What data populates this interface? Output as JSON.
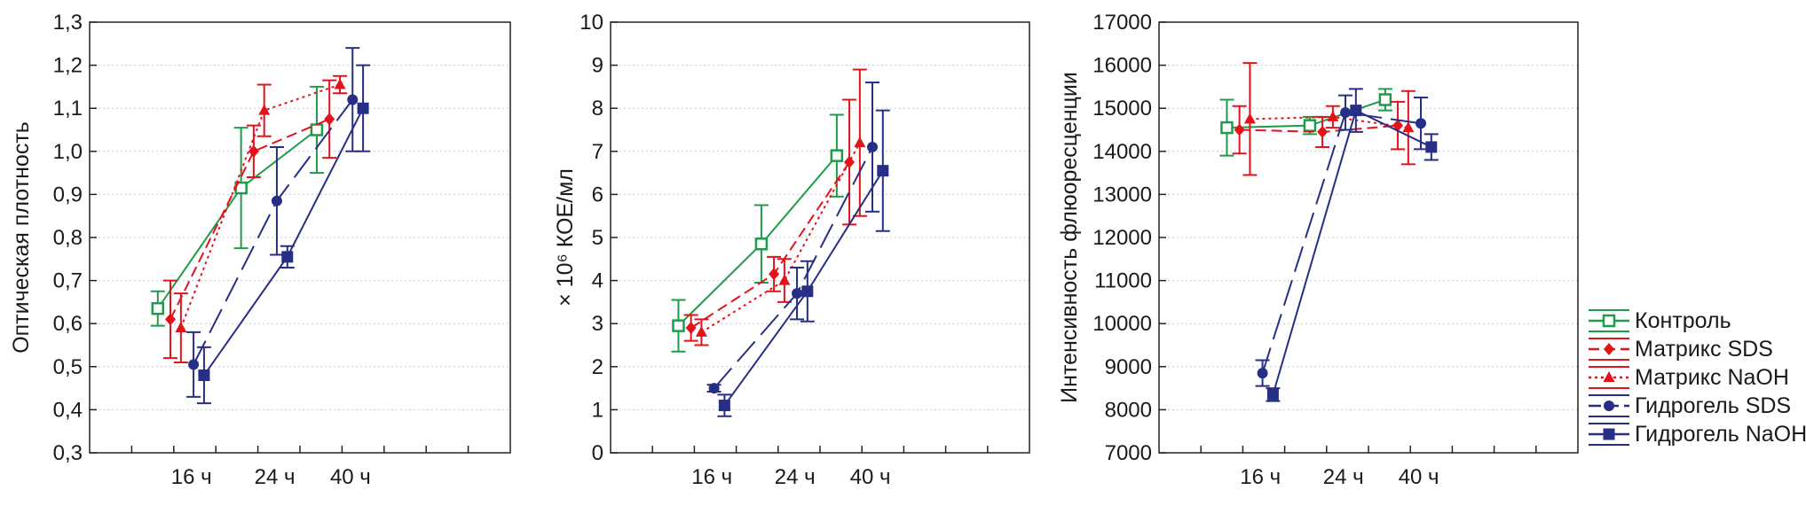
{
  "legend": [
    {
      "label": "Контроль",
      "color": "#1e9b4b",
      "dash": "solid",
      "marker": "square-open"
    },
    {
      "label": "Матрикс SDS",
      "color": "#e3131b",
      "dash": "dashed",
      "marker": "diamond"
    },
    {
      "label": "Матрикс NaOH",
      "color": "#e3131b",
      "dash": "dotted",
      "marker": "triangle"
    },
    {
      "label": "Гидрогель SDS",
      "color": "#262e85",
      "dash": "longdash",
      "marker": "circle"
    },
    {
      "label": "Гидрогель NaOH",
      "color": "#262e85",
      "dash": "solid",
      "marker": "square"
    }
  ],
  "chart_data": [
    {
      "type": "line",
      "title": "",
      "xlabel": "",
      "ylabel": "Оптическая плотность",
      "categories": [
        "16 ч",
        "24 ч",
        "40 ч"
      ],
      "ylim": [
        0.3,
        1.3
      ],
      "yticks": [
        "0,3",
        "0,4",
        "0,5",
        "0,6",
        "0,7",
        "0,8",
        "0,9",
        "1,0",
        "1,1",
        "1,2",
        "1,3"
      ],
      "grid": true,
      "series": [
        {
          "name": "Контроль",
          "values": [
            0.635,
            0.915,
            1.05
          ],
          "errors": [
            0.04,
            0.14,
            0.1
          ]
        },
        {
          "name": "Матрикс SDS",
          "values": [
            0.61,
            1.0,
            1.075
          ],
          "errors": [
            0.09,
            0.06,
            0.09
          ]
        },
        {
          "name": "Матрикс NaOH",
          "values": [
            0.59,
            1.095,
            1.155
          ],
          "errors": [
            0.08,
            0.06,
            0.02
          ]
        },
        {
          "name": "Гидрогель SDS",
          "values": [
            0.505,
            0.885,
            1.12
          ],
          "errors": [
            0.075,
            0.125,
            0.12
          ]
        },
        {
          "name": "Гидрогель NaOH",
          "values": [
            0.48,
            0.755,
            1.1
          ],
          "errors": [
            0.065,
            0.025,
            0.1
          ]
        }
      ]
    },
    {
      "type": "line",
      "title": "",
      "xlabel": "",
      "ylabel": "× 10⁶ КОЕ/мл",
      "categories": [
        "16 ч",
        "24 ч",
        "40 ч"
      ],
      "ylim": [
        0,
        10
      ],
      "yticks": [
        "0",
        "1",
        "2",
        "3",
        "4",
        "5",
        "6",
        "7",
        "8",
        "9",
        "10"
      ],
      "grid": true,
      "series": [
        {
          "name": "Контроль",
          "values": [
            2.95,
            4.85,
            6.9
          ],
          "errors": [
            0.6,
            0.9,
            0.95
          ]
        },
        {
          "name": "Матрикс SDS",
          "values": [
            2.9,
            4.15,
            6.75
          ],
          "errors": [
            0.3,
            0.4,
            1.45
          ]
        },
        {
          "name": "Матрикс NaOH",
          "values": [
            2.8,
            4.0,
            7.2
          ],
          "errors": [
            0.3,
            0.5,
            1.7
          ]
        },
        {
          "name": "Гидрогель SDS",
          "values": [
            1.5,
            3.7,
            7.1
          ],
          "errors": [
            0.08,
            0.6,
            1.5
          ]
        },
        {
          "name": "Гидрогель NaOH",
          "values": [
            1.1,
            3.75,
            6.55
          ],
          "errors": [
            0.25,
            0.7,
            1.4
          ]
        }
      ]
    },
    {
      "type": "line",
      "title": "",
      "xlabel": "",
      "ylabel": "Интенсивность флюоресценции",
      "categories": [
        "16 ч",
        "24 ч",
        "40 ч"
      ],
      "ylim": [
        7000,
        17000
      ],
      "yticks": [
        "7000",
        "8000",
        "9000",
        "10000",
        "11000",
        "12000",
        "13000",
        "14000",
        "15000",
        "16000",
        "17000"
      ],
      "grid": true,
      "series": [
        {
          "name": "Контроль",
          "values": [
            14550,
            14600,
            15200
          ],
          "errors": [
            650,
            200,
            250
          ]
        },
        {
          "name": "Матрикс SDS",
          "values": [
            14500,
            14450,
            14600
          ],
          "errors": [
            550,
            350,
            550
          ]
        },
        {
          "name": "Матрикс NaOH",
          "values": [
            14750,
            14800,
            14550
          ],
          "errors": [
            1300,
            250,
            850
          ]
        },
        {
          "name": "Гидрогель SDS",
          "values": [
            8850,
            14900,
            14650
          ],
          "errors": [
            300,
            400,
            600
          ]
        },
        {
          "name": "Гидрогель NaOH",
          "values": [
            8350,
            14950,
            14100
          ],
          "errors": [
            150,
            500,
            300
          ]
        }
      ]
    }
  ]
}
